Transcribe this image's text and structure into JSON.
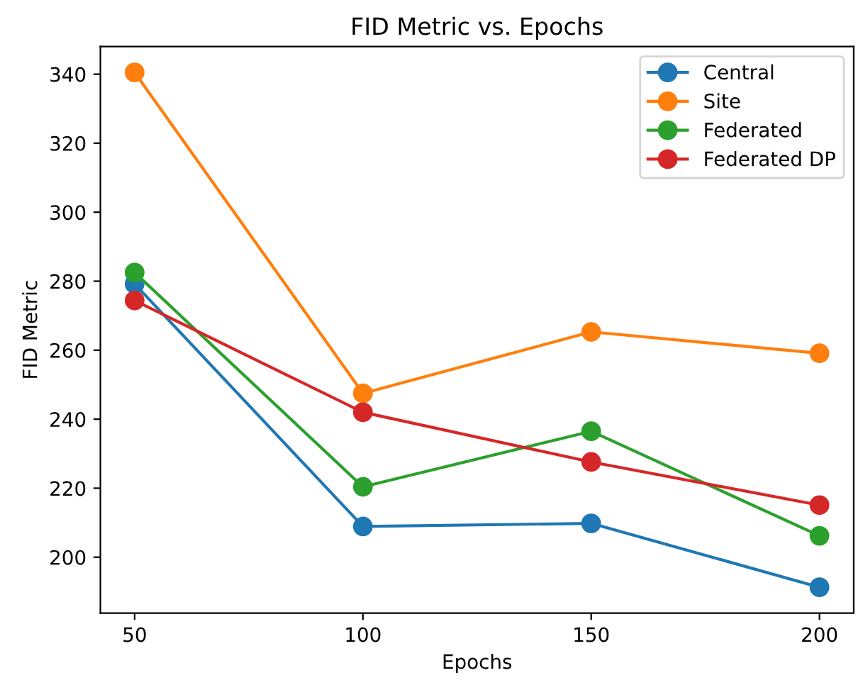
{
  "chart_data": {
    "type": "line",
    "title": "FID Metric vs. Epochs",
    "xlabel": "Epochs",
    "ylabel": "FID Metric",
    "x": [
      50,
      100,
      150,
      200
    ],
    "series": [
      {
        "name": "Central",
        "color": "#1f77b4",
        "values": [
          279.2,
          208.9,
          209.8,
          191.3
        ]
      },
      {
        "name": "Site",
        "color": "#ff7f0e",
        "values": [
          340.5,
          247.5,
          265.3,
          259.1
        ]
      },
      {
        "name": "Federated",
        "color": "#2ca02c",
        "values": [
          282.5,
          220.4,
          236.5,
          206.2
        ]
      },
      {
        "name": "Federated DP",
        "color": "#d62728",
        "values": [
          274.4,
          242.0,
          227.6,
          215.1
        ]
      }
    ],
    "xlim": [
      42.5,
      207.5
    ],
    "ylim": [
      183.8,
      348.0
    ],
    "xticks": [
      50,
      100,
      150,
      200
    ],
    "yticks": [
      200,
      220,
      240,
      260,
      280,
      300,
      320,
      340
    ],
    "grid": false,
    "legend": "top right",
    "marker": "circle",
    "line_style": "solid"
  }
}
